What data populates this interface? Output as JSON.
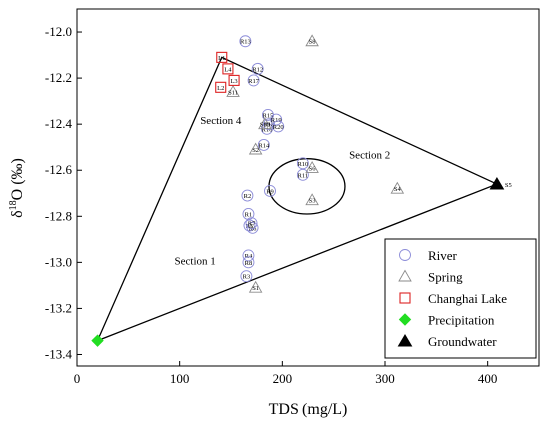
{
  "chart_data": {
    "type": "scatter",
    "xlabel": "TDS (mg/L)",
    "ylabel_parts": [
      "δ",
      "18",
      "O (‰)"
    ],
    "xlim": [
      0,
      450
    ],
    "ylim": [
      -13.45,
      -11.9
    ],
    "xticks": [
      0,
      100,
      200,
      300,
      400
    ],
    "yticks": [
      -13.4,
      -13.2,
      -13.0,
      -12.8,
      -12.6,
      -12.4,
      -12.2,
      -12.0
    ],
    "xtick_labels": [
      "0",
      "100",
      "200",
      "300",
      "400"
    ],
    "ytick_labels": [
      "-13.4",
      "-13.2",
      "-13.0",
      "-12.8",
      "-12.6",
      "-12.4",
      "-12.2",
      "-12.0"
    ],
    "legend_placement": "bottom-right",
    "series": [
      {
        "name": "River",
        "marker": "circle",
        "color": "#8c8cd8",
        "points": [
          {
            "label": "R1",
            "x": 167,
            "y": -12.79
          },
          {
            "label": "R2",
            "x": 166,
            "y": -12.71
          },
          {
            "label": "R3",
            "x": 165,
            "y": -13.06
          },
          {
            "label": "R4",
            "x": 167,
            "y": -12.97
          },
          {
            "label": "R5",
            "x": 168,
            "y": -12.84
          },
          {
            "label": "R6",
            "x": 171,
            "y": -12.85
          },
          {
            "label": "R7",
            "x": 170,
            "y": -12.83
          },
          {
            "label": "R8",
            "x": 167,
            "y": -13.0
          },
          {
            "label": "R9",
            "x": 188,
            "y": -12.69
          },
          {
            "label": "R10",
            "x": 220,
            "y": -12.57
          },
          {
            "label": "R11",
            "x": 220,
            "y": -12.62
          },
          {
            "label": "R12",
            "x": 176,
            "y": -12.16
          },
          {
            "label": "R13",
            "x": 164,
            "y": -12.04
          },
          {
            "label": "R14",
            "x": 182,
            "y": -12.49
          },
          {
            "label": "R15",
            "x": 186,
            "y": -12.36
          },
          {
            "label": "R16",
            "x": 185,
            "y": -12.42
          },
          {
            "label": "R17",
            "x": 172,
            "y": -12.21
          },
          {
            "label": "R18",
            "x": 187,
            "y": -12.4
          },
          {
            "label": "R19",
            "x": 194,
            "y": -12.38
          },
          {
            "label": "R20",
            "x": 196,
            "y": -12.41
          }
        ]
      },
      {
        "name": "Spring",
        "marker": "triangle",
        "color": "#8a8a8a",
        "points": [
          {
            "label": "S1",
            "x": 174,
            "y": -13.11
          },
          {
            "label": "S2",
            "x": 174,
            "y": -12.51
          },
          {
            "label": "S3",
            "x": 229,
            "y": -12.73
          },
          {
            "label": "S4",
            "x": 312,
            "y": -12.68
          },
          {
            "label": "S6",
            "x": 229,
            "y": -12.59
          },
          {
            "label": "S8",
            "x": 229,
            "y": -12.04
          },
          {
            "label": "S10",
            "x": 183,
            "y": -12.4
          },
          {
            "label": "S11",
            "x": 152,
            "y": -12.26
          }
        ]
      },
      {
        "name": "Changhai Lake",
        "marker": "square",
        "color": "#dd2222",
        "points": [
          {
            "label": "L1",
            "x": 141,
            "y": -12.11
          },
          {
            "label": "L2",
            "x": 140,
            "y": -12.24
          },
          {
            "label": "L3",
            "x": 153,
            "y": -12.21
          },
          {
            "label": "L4",
            "x": 147,
            "y": -12.16
          }
        ]
      },
      {
        "name": "Precipitation",
        "marker": "diamond",
        "color": "#22dd22",
        "points": [
          {
            "label": "",
            "x": 20,
            "y": -13.34
          }
        ]
      },
      {
        "name": "Groundwater",
        "marker": "filled-triangle",
        "color": "#000000",
        "points": [
          {
            "label": "S5",
            "x": 409,
            "y": -12.66
          }
        ]
      }
    ],
    "mixing_triangle": [
      {
        "x": 20,
        "y": -13.34
      },
      {
        "x": 141,
        "y": -12.11
      },
      {
        "x": 409,
        "y": -12.66
      }
    ],
    "section2_ellipse": {
      "cx": 224,
      "cy": -12.67,
      "rx": 37,
      "ry": 0.12
    },
    "annotations": [
      {
        "text": "Section 1",
        "x": 95,
        "y": -13.01
      },
      {
        "text": "Section 2",
        "x": 265,
        "y": -12.55
      },
      {
        "text": "Section 4",
        "x": 120,
        "y": -12.4
      }
    ]
  }
}
